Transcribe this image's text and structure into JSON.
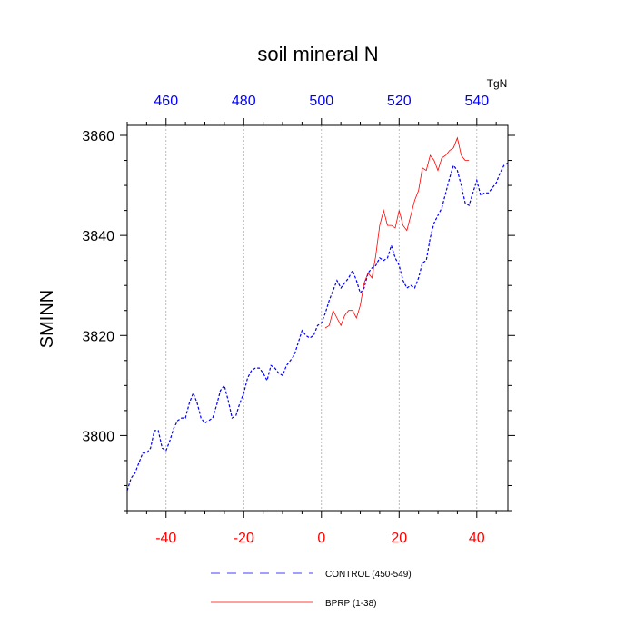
{
  "chart_data": {
    "type": "line",
    "title": "soil mineral N",
    "ylabel": "SMINN",
    "ylim": [
      3785,
      3862
    ],
    "xlim": [
      -50,
      48
    ],
    "yticks": [
      3800,
      3820,
      3840,
      3860
    ],
    "bottom_axis": {
      "ticks": [
        -40,
        -20,
        0,
        20,
        40
      ],
      "tick_labels": [
        "-40",
        "-20",
        "0",
        "20",
        "40"
      ],
      "color": "#ff0000"
    },
    "top_axis": {
      "ticks": [
        460,
        480,
        500,
        520,
        540
      ],
      "tick_labels": [
        "460",
        "480",
        "500",
        "520",
        "540"
      ],
      "unit_label": "TgN",
      "color": "#0000ff",
      "offset": 500
    },
    "grid": "vertical dotted at major bottom ticks",
    "legend_position": "bottom",
    "series": [
      {
        "name": "CONTROL (450-549)",
        "color": "#0000ff",
        "style": "dashed",
        "x": [
          -50,
          -49,
          -48,
          -47,
          -46,
          -45,
          -44,
          -43,
          -42,
          -41,
          -40,
          -39,
          -38,
          -37,
          -36,
          -35,
          -34,
          -33,
          -32,
          -31,
          -30,
          -29,
          -28,
          -27,
          -26,
          -25,
          -24,
          -23,
          -22,
          -21,
          -20,
          -19,
          -18,
          -17,
          -16,
          -15,
          -14,
          -13,
          -12,
          -11,
          -10,
          -9,
          -8,
          -7,
          -6,
          -5,
          -4,
          -3,
          -2,
          -1,
          0,
          1,
          2,
          3,
          4,
          5,
          6,
          7,
          8,
          9,
          10,
          11,
          12,
          13,
          14,
          15,
          16,
          17,
          18,
          19,
          20,
          21,
          22,
          23,
          24,
          25,
          26,
          27,
          28,
          29,
          30,
          31,
          32,
          33,
          34,
          35,
          36,
          37,
          38,
          39,
          40,
          41,
          42,
          43,
          44,
          45,
          46,
          47,
          48
        ],
        "values": [
          3789,
          3791.5,
          3792.5,
          3794.5,
          3796.5,
          3796.5,
          3797.5,
          3801,
          3801,
          3797.5,
          3797,
          3799,
          3801.5,
          3803,
          3803.5,
          3803.5,
          3806.5,
          3808.5,
          3806.5,
          3803.5,
          3802.5,
          3803,
          3803.5,
          3806,
          3809,
          3810,
          3807,
          3803.5,
          3804,
          3806.5,
          3808.5,
          3811.5,
          3813,
          3813.5,
          3813.5,
          3812.5,
          3811,
          3814,
          3813.5,
          3812.5,
          3812,
          3814,
          3815,
          3816,
          3818.5,
          3821,
          3820,
          3819.5,
          3820,
          3822,
          3822.5,
          3824.5,
          3827,
          3829,
          3831,
          3829.5,
          3830.5,
          3831.5,
          3833,
          3831,
          3828.5,
          3829.5,
          3832.5,
          3833.5,
          3834,
          3835.5,
          3835,
          3835.5,
          3838,
          3835.5,
          3834,
          3831,
          3829.5,
          3830,
          3829.5,
          3831.5,
          3834.5,
          3835,
          3839.5,
          3842.5,
          3844,
          3845.5,
          3848.5,
          3851.5,
          3854,
          3853,
          3850,
          3846.5,
          3846,
          3848.5,
          3851,
          3848,
          3848.5,
          3848.5,
          3849.5,
          3850.5,
          3852.5,
          3854,
          3854.5
        ]
      },
      {
        "name": "BPRP (1-38)",
        "color": "#ff0000",
        "style": "solid",
        "x": [
          1,
          2,
          3,
          4,
          5,
          6,
          7,
          8,
          9,
          10,
          11,
          12,
          13,
          14,
          15,
          16,
          17,
          18,
          19,
          20,
          21,
          22,
          23,
          24,
          25,
          26,
          27,
          28,
          29,
          30,
          31,
          32,
          33,
          34,
          35,
          36,
          37,
          38
        ],
        "values": [
          3821.5,
          3822,
          3825,
          3823.5,
          3822,
          3824,
          3825,
          3825,
          3823.5,
          3826,
          3830.5,
          3832.5,
          3831.5,
          3836,
          3842,
          3845,
          3842,
          3842,
          3841.5,
          3845,
          3842,
          3841,
          3844,
          3847,
          3849,
          3853.5,
          3853,
          3856,
          3855,
          3853,
          3855.5,
          3856,
          3857,
          3857.5,
          3859.5,
          3856,
          3855,
          3855
        ]
      }
    ]
  }
}
